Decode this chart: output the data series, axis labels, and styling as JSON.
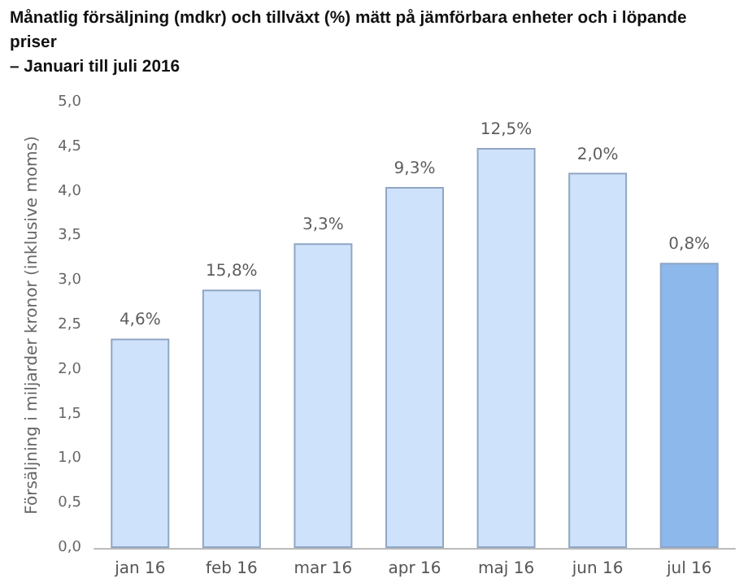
{
  "chart_data": {
    "type": "bar",
    "title": "Månatlig försäljning (mdkr) och tillväxt (%) mätt på jämförbara enheter och i löpande priser",
    "subtitle": "– Januari till juli 2016",
    "ylabel": "Försäljning i miljarder kronor (inklusive moms)",
    "categories": [
      "jan 16",
      "feb 16",
      "mar 16",
      "apr 16",
      "maj 16",
      "jun 16",
      "jul 16"
    ],
    "values": [
      2.35,
      2.9,
      3.42,
      4.05,
      4.49,
      4.21,
      3.2
    ],
    "colors": [
      "#cfe2fb",
      "#cfe2fb",
      "#cfe2fb",
      "#cfe2fb",
      "#cfe2fb",
      "#cfe2fb",
      "#8db8ec"
    ],
    "annotations": [
      {
        "text": "4,6%",
        "x": "jan 16",
        "y": 2.35
      },
      {
        "text": "15,8%",
        "x": "feb 16",
        "y": 2.9
      },
      {
        "text": "3,3%",
        "x": "mar 16",
        "y": 3.42
      },
      {
        "text": "9,3%",
        "x": "apr 16",
        "y": 4.05
      },
      {
        "text": "12,5%",
        "x": "maj 16",
        "y": 4.49
      },
      {
        "text": "2,0%",
        "x": "jun 16",
        "y": 4.21
      },
      {
        "text": "0,8%",
        "x": "jul 16",
        "y": 3.2
      }
    ],
    "ylim": [
      0,
      5
    ],
    "yticks": [
      {
        "value": 0,
        "label": "0,0"
      },
      {
        "value": 0.5,
        "label": "0,5"
      },
      {
        "value": 1,
        "label": "1,0"
      },
      {
        "value": 1.5,
        "label": "1,5"
      },
      {
        "value": 2,
        "label": "2,0"
      },
      {
        "value": 2.5,
        "label": "2,5"
      },
      {
        "value": 3,
        "label": "3,0"
      },
      {
        "value": 3.5,
        "label": "3,5"
      },
      {
        "value": 4,
        "label": "4,0"
      },
      {
        "value": 4.5,
        "label": "4,5"
      },
      {
        "value": 5,
        "label": "5,0"
      }
    ],
    "grid": false
  }
}
